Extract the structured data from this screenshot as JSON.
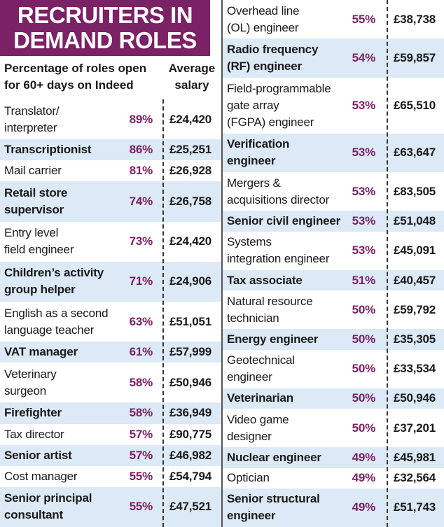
{
  "title": [
    "RECRUITERS IN",
    "DEMAND ROLES"
  ],
  "header": {
    "percentage": [
      "Percentage of roles open",
      "for 60+ days on Indeed"
    ],
    "salary": [
      "Average",
      "salary"
    ]
  },
  "left_rows": [
    {
      "role": [
        "Translator/",
        "interpreter"
      ],
      "percentage": "89%",
      "salary": "£24,420"
    },
    {
      "role": [
        "Transcriptionist"
      ],
      "percentage": "86%",
      "salary": "£25,251"
    },
    {
      "role": [
        "Mail carrier"
      ],
      "percentage": "81%",
      "salary": "£26,928"
    },
    {
      "role": [
        "Retail store",
        "supervisor"
      ],
      "percentage": "74%",
      "salary": "£26,758"
    },
    {
      "role": [
        "Entry level",
        "field engineer"
      ],
      "percentage": "73%",
      "salary": "£24,420"
    },
    {
      "role": [
        "Children’s activity",
        "group helper"
      ],
      "percentage": "71%",
      "salary": "£24,906"
    },
    {
      "role": [
        "English as a second",
        "language teacher"
      ],
      "percentage": "63%",
      "salary": "£51,051"
    },
    {
      "role": [
        "VAT manager"
      ],
      "percentage": "61%",
      "salary": "£57,999"
    },
    {
      "role": [
        "Veterinary",
        "surgeon"
      ],
      "percentage": "58%",
      "salary": "£50,946"
    },
    {
      "role": [
        "Firefighter"
      ],
      "percentage": "58%",
      "salary": "£36,949"
    },
    {
      "role": [
        "Tax director"
      ],
      "percentage": "57%",
      "salary": "£90,775"
    },
    {
      "role": [
        "Senior artist"
      ],
      "percentage": "57%",
      "salary": "£46,982"
    },
    {
      "role": [
        "Cost manager"
      ],
      "percentage": "55%",
      "salary": "£54,794"
    },
    {
      "role": [
        "Senior principal",
        "consultant"
      ],
      "percentage": "55%",
      "salary": "£47,521"
    }
  ],
  "right_rows": [
    {
      "role": [
        "Overhead line",
        "(OL) engineer"
      ],
      "percentage": "55%",
      "salary": "£38,738"
    },
    {
      "role": [
        "Radio frequency",
        "(RF) engineer"
      ],
      "percentage": "54%",
      "salary": "£59,857"
    },
    {
      "role": [
        "Field-programmable",
        "gate array",
        "(FGPA) engineer"
      ],
      "percentage": "53%",
      "salary": "£65,510"
    },
    {
      "role": [
        "Verification",
        "engineer"
      ],
      "percentage": "53%",
      "salary": "£63,647"
    },
    {
      "role": [
        "Mergers &",
        "acquisitions director"
      ],
      "percentage": "53%",
      "salary": "£83,505"
    },
    {
      "role": [
        "Senior civil engineer"
      ],
      "percentage": "53%",
      "salary": "£51,048"
    },
    {
      "role": [
        "Systems",
        "integration engineer"
      ],
      "percentage": "53%",
      "salary": "£45,091"
    },
    {
      "role": [
        "Tax associate"
      ],
      "percentage": "51%",
      "salary": "£40,457"
    },
    {
      "role": [
        "Natural resource",
        "technician"
      ],
      "percentage": "50%",
      "salary": "£59,792"
    },
    {
      "role": [
        "Energy engineer"
      ],
      "percentage": "50%",
      "salary": "£35,305"
    },
    {
      "role": [
        "Geotechnical",
        "engineer"
      ],
      "percentage": "50%",
      "salary": "£33,534"
    },
    {
      "role": [
        "Veterinarian"
      ],
      "percentage": "50%",
      "salary": "£50,946"
    },
    {
      "role": [
        "Video game",
        "designer"
      ],
      "percentage": "50%",
      "salary": "£37,201"
    },
    {
      "role": [
        "Nuclear engineer"
      ],
      "percentage": "49%",
      "salary": "£45,981"
    },
    {
      "role": [
        "Optician"
      ],
      "percentage": "49%",
      "salary": "£32,564"
    },
    {
      "role": [
        "Senior structural",
        "engineer"
      ],
      "percentage": "49%",
      "salary": "£51,743"
    }
  ]
}
